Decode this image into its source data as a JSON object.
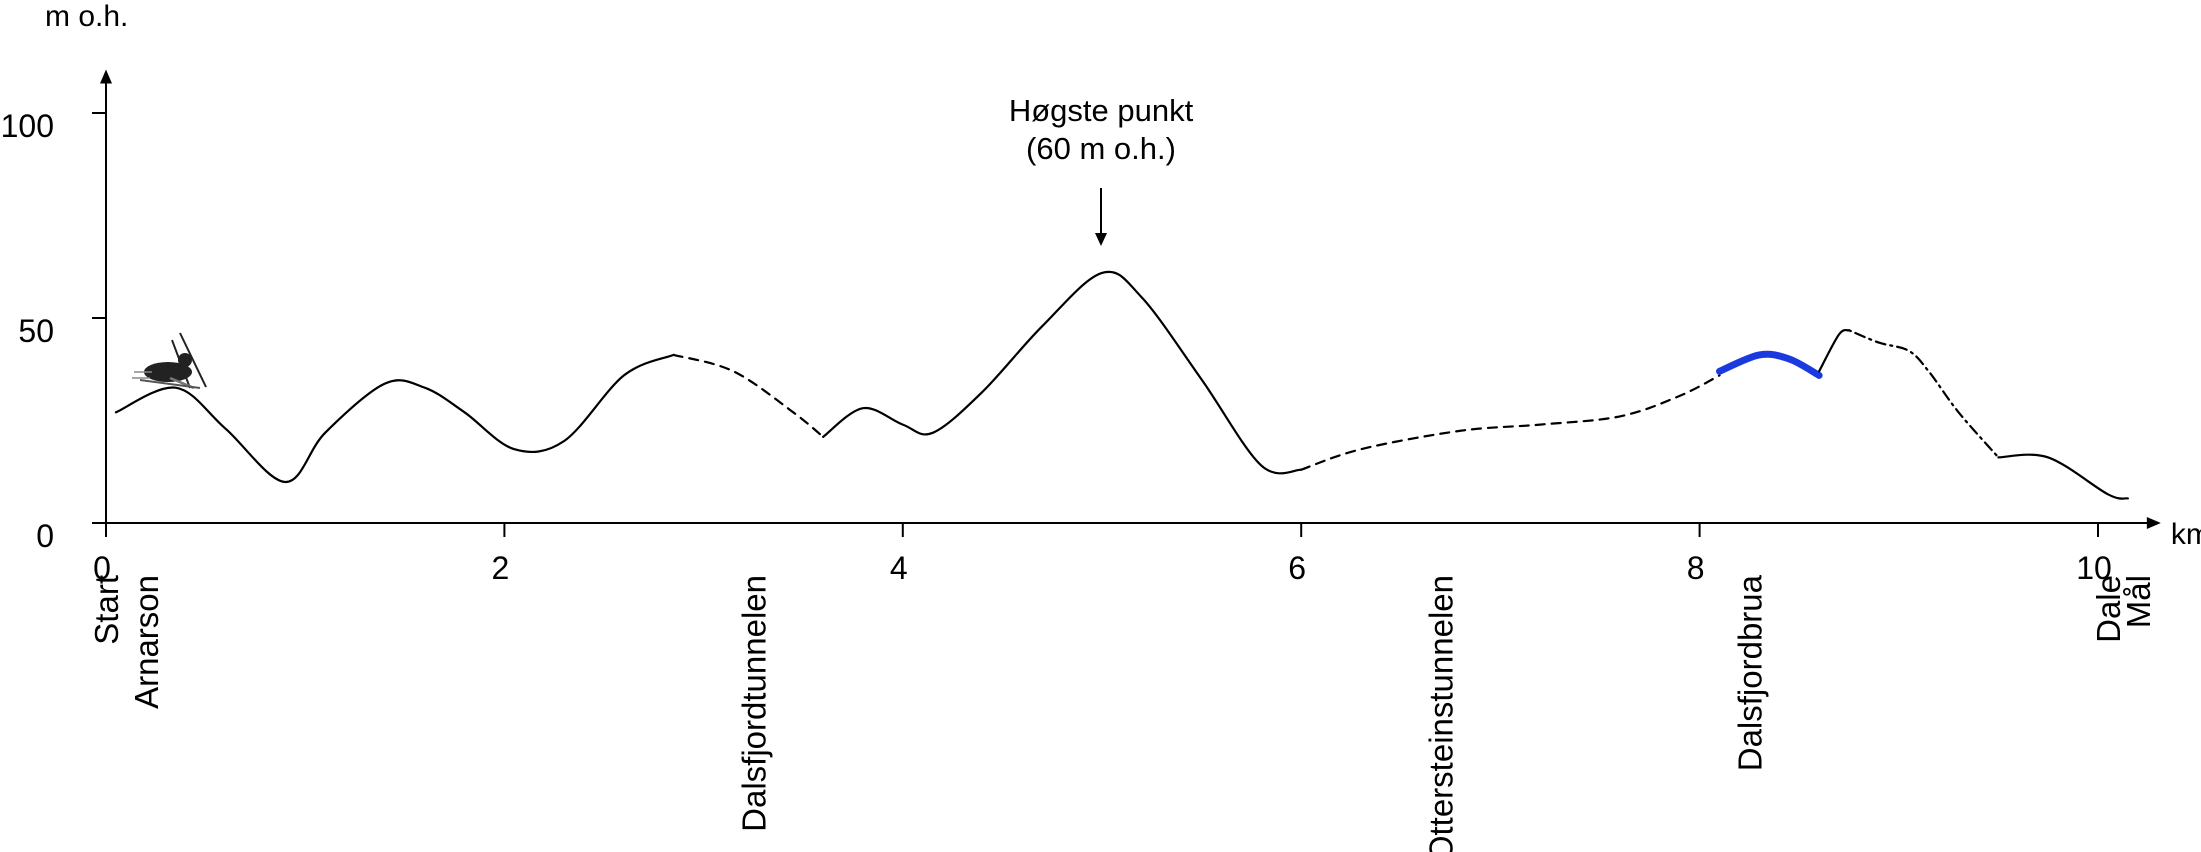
{
  "chart_data": {
    "type": "line",
    "title": "",
    "ylabel": "m o.h.",
    "xlabel": "km",
    "xlim": [
      0,
      10.2
    ],
    "ylim": [
      0,
      105
    ],
    "xticks": [
      0,
      2,
      4,
      6,
      8,
      10
    ],
    "yticks": [
      0,
      50,
      100
    ],
    "series": [
      {
        "style": "solid",
        "points": [
          [
            0.05,
            27
          ],
          [
            0.35,
            33
          ],
          [
            0.6,
            23
          ],
          [
            0.9,
            10
          ],
          [
            1.1,
            22
          ],
          [
            1.4,
            34
          ],
          [
            1.6,
            33
          ],
          [
            1.8,
            27
          ],
          [
            2.05,
            18
          ],
          [
            2.3,
            20
          ],
          [
            2.6,
            36
          ],
          [
            2.85,
            41
          ]
        ]
      },
      {
        "style": "dashed",
        "points": [
          [
            2.85,
            41
          ],
          [
            3.15,
            37
          ],
          [
            3.45,
            27
          ],
          [
            3.6,
            21
          ]
        ]
      },
      {
        "style": "solid",
        "points": [
          [
            3.6,
            21
          ],
          [
            3.8,
            28
          ],
          [
            4.0,
            24
          ],
          [
            4.15,
            22
          ],
          [
            4.4,
            32
          ],
          [
            4.7,
            48
          ],
          [
            5.0,
            61
          ],
          [
            5.2,
            55
          ],
          [
            5.5,
            35
          ],
          [
            5.8,
            14
          ],
          [
            6.0,
            13
          ]
        ]
      },
      {
        "style": "dashed",
        "points": [
          [
            6.0,
            13
          ],
          [
            6.3,
            18
          ],
          [
            6.8,
            22.5
          ],
          [
            7.2,
            24
          ],
          [
            7.6,
            26
          ],
          [
            7.9,
            31
          ],
          [
            8.1,
            36
          ]
        ]
      },
      {
        "style": "bridge",
        "points": [
          [
            8.1,
            37
          ],
          [
            8.3,
            41
          ],
          [
            8.45,
            40
          ],
          [
            8.6,
            36
          ]
        ]
      },
      {
        "style": "solid",
        "points": [
          [
            8.6,
            37
          ],
          [
            8.7,
            46
          ],
          [
            8.75,
            47
          ]
        ]
      },
      {
        "style": "dash-dot",
        "points": [
          [
            8.75,
            47
          ],
          [
            8.9,
            44
          ],
          [
            9.05,
            42
          ],
          [
            9.15,
            37
          ],
          [
            9.3,
            27
          ],
          [
            9.5,
            16
          ]
        ]
      },
      {
        "style": "solid",
        "points": [
          [
            9.5,
            16
          ],
          [
            9.75,
            16
          ],
          [
            10.05,
            7
          ],
          [
            10.15,
            6
          ]
        ]
      }
    ],
    "annotations": {
      "peak_line1": "Høgste punkt",
      "peak_line2": "(60 m o.h.)",
      "peak_x": 5.0,
      "peak_y": 60
    },
    "places": [
      {
        "label": "Start",
        "x": 0,
        "color": "#22dd22"
      },
      {
        "label": "Arnarson",
        "x": 0.2,
        "color": "#000000"
      },
      {
        "label": "Dalsfjordtunnelen",
        "x": 3.25,
        "color": "#000000"
      },
      {
        "label": "Ottersteinstunnelen",
        "x": 6.7,
        "color": "#000000"
      },
      {
        "label": "Dalsfjordbrua",
        "x": 8.25,
        "color": "#000000"
      },
      {
        "label": "Dale",
        "x": 10.05,
        "color": "#000000"
      },
      {
        "label": "Mål",
        "x": 10.2,
        "color": "#ee2222"
      }
    ],
    "colors": {
      "line": "#000000",
      "bridge": "#1a3adf",
      "start": "#22dd22",
      "finish": "#ee2222"
    },
    "icons": [
      "cross-country-skier-icon"
    ],
    "grid": false,
    "legend": "none"
  }
}
